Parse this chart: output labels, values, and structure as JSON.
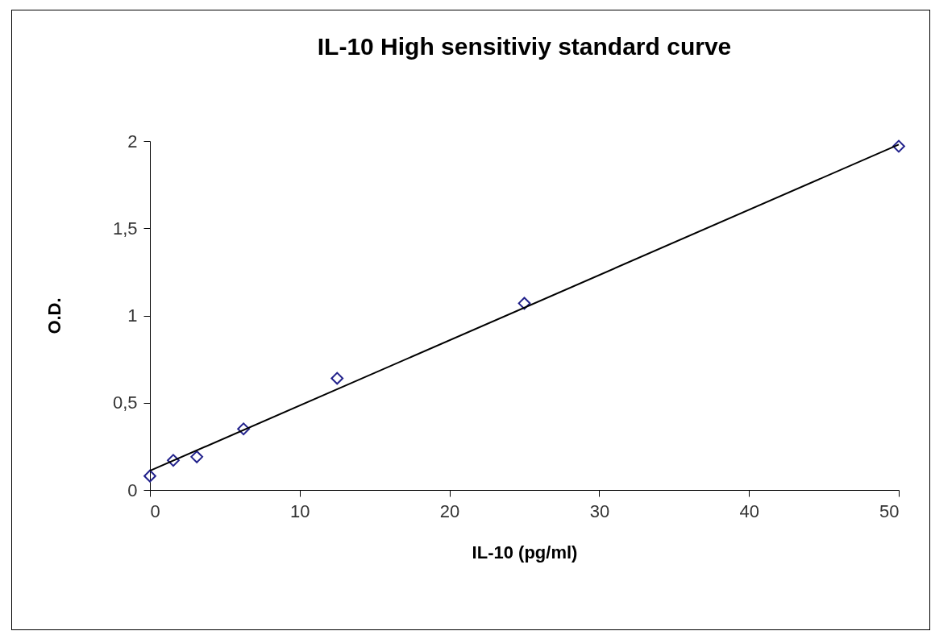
{
  "chart_data": {
    "type": "scatter",
    "title": "IL-10 High sensitiviy standard curve",
    "xlabel": "IL-10 (pg/ml)",
    "ylabel": "O.D.",
    "xlim": [
      0,
      50
    ],
    "xticks": [
      0,
      10,
      20,
      30,
      40,
      50
    ],
    "ylim": [
      0,
      2
    ],
    "yticks": [
      0,
      {
        "value": 0.5,
        "label": "0,5"
      },
      1,
      {
        "value": 1.5,
        "label": "1,5"
      },
      2
    ],
    "grid": false,
    "series": [
      {
        "color": "#22228c",
        "marker": "diamond",
        "x": [
          0,
          1.56,
          3.13,
          6.25,
          12.5,
          25,
          50
        ],
        "values": [
          0.08,
          0.17,
          0.19,
          0.35,
          0.64,
          1.07,
          1.97
        ]
      },
      {
        "type": "line",
        "color": "#000000",
        "line_style": "solid",
        "x": [
          0,
          50
        ],
        "values": [
          0.11,
          1.98
        ]
      }
    ]
  }
}
